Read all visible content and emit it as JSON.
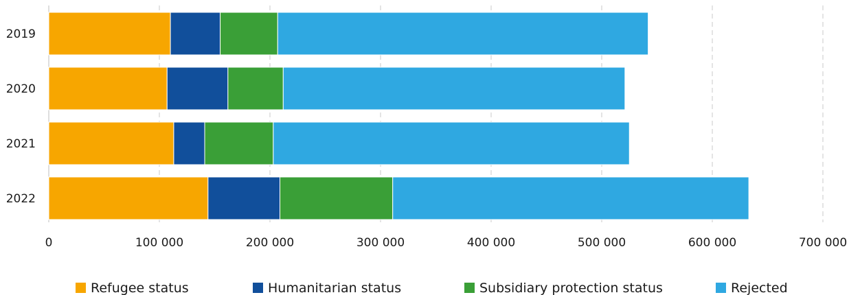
{
  "chart_data": {
    "type": "bar",
    "orientation": "horizontal",
    "stacked": true,
    "categories": [
      "2019",
      "2020",
      "2021",
      "2022"
    ],
    "series": [
      {
        "name": "Refugee status",
        "color": "#f7a600",
        "values": [
          110000,
          107000,
          113000,
          144000
        ]
      },
      {
        "name": "Humanitarian status",
        "color": "#114f9b",
        "values": [
          45000,
          55000,
          28000,
          65000
        ]
      },
      {
        "name": "Subsidiary  protection status",
        "color": "#3a9f37",
        "values": [
          52000,
          50000,
          62000,
          102000
        ]
      },
      {
        "name": "Rejected",
        "color": "#2fa8e1",
        "values": [
          335000,
          309000,
          322000,
          322000
        ]
      }
    ],
    "x_ticks": [
      "0",
      "100 000",
      "200 000",
      "300 000",
      "400 000",
      "500 000",
      "600 000",
      "700 000"
    ],
    "xlim": [
      0,
      700000
    ],
    "grid": "vertical-dashed",
    "legend": "bottom"
  }
}
